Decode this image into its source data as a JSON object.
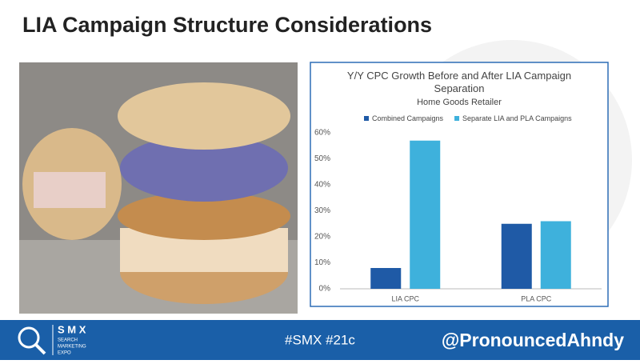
{
  "slide": {
    "title": "LIA Campaign Structure Considerations"
  },
  "chart_data": {
    "type": "bar",
    "title": "Y/Y CPC Growth Before and After LIA Campaign Separation",
    "subtitle": "Home Goods Retailer",
    "categories": [
      "LIA CPC",
      "PLA CPC"
    ],
    "series": [
      {
        "name": "Combined Campaigns",
        "color": "#1f5aa6",
        "values": [
          8,
          25
        ]
      },
      {
        "name": "Separate LIA and PLA Campaigns",
        "color": "#3eb1dc",
        "values": [
          57,
          26
        ]
      }
    ],
    "ylim": [
      0,
      60
    ],
    "yticks": [
      {
        "value": 0,
        "label": "0%"
      },
      {
        "value": 10,
        "label": "10%"
      },
      {
        "value": 20,
        "label": "20%"
      },
      {
        "value": 30,
        "label": "30%"
      },
      {
        "value": 40,
        "label": "40%"
      },
      {
        "value": 50,
        "label": "50%"
      },
      {
        "value": 60,
        "label": "60%"
      }
    ],
    "grid": false,
    "legend": "top"
  },
  "footer": {
    "logo": "S M X",
    "logo_sub": [
      "SEARCH",
      "MARKETING",
      "EXPO"
    ],
    "hashtag": "#SMX #21c",
    "handle": "@PronouncedAhndy"
  }
}
